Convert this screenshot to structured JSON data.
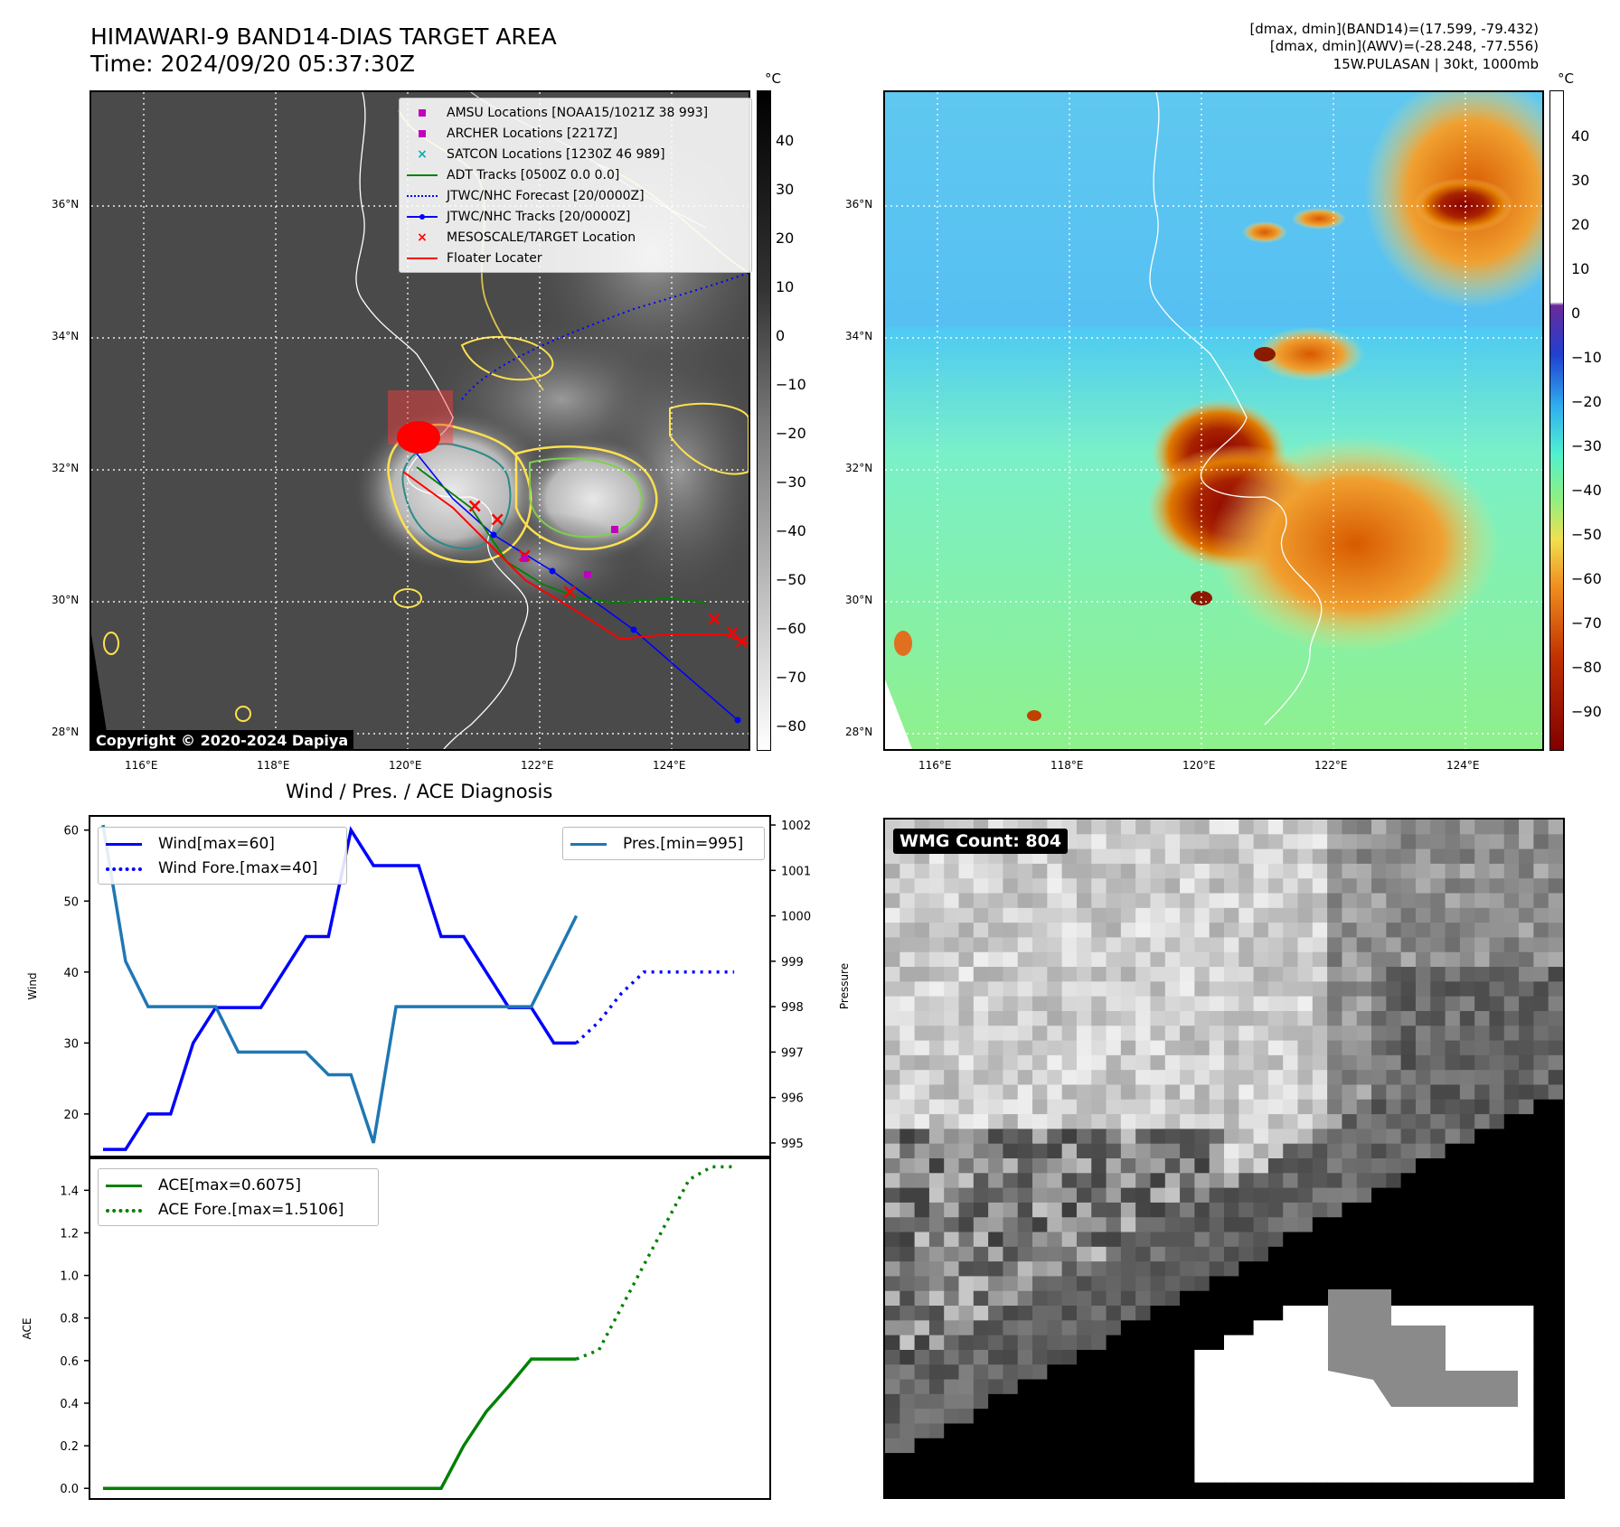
{
  "header": {
    "title_line1": "HIMAWARI-9 BAND14-DIAS TARGET AREA",
    "title_line2": "Time: 2024/09/20 05:37:30Z",
    "stats_line1": "[dmax, dmin](BAND14)=(17.599, -79.432)",
    "stats_line2": "[dmax, dmin](AWV)=(-28.248, -77.556)",
    "stats_line3": "15W.PULASAN | 30kt, 1000mb"
  },
  "map_axes": {
    "lat_ticks": [
      "36°N",
      "34°N",
      "32°N",
      "30°N",
      "28°N"
    ],
    "lon_ticks": [
      "116°E",
      "118°E",
      "120°E",
      "122°E",
      "124°E"
    ]
  },
  "ir_panel": {
    "legend": [
      {
        "label": "AMSU Locations [NOAA15/1021Z 38 993]",
        "marker": "square",
        "color": "#c000c0"
      },
      {
        "label": "ARCHER Locations [2217Z]",
        "marker": "square",
        "color": "#c000c0"
      },
      {
        "label": "SATCON Locations [1230Z 46 989]",
        "marker": "x",
        "color": "#00b0b0"
      },
      {
        "label": "ADT Tracks [0500Z 0.0 0.0]",
        "marker": "line",
        "color": "#008000"
      },
      {
        "label": "JTWC/NHC Forecast [20/0000Z]",
        "marker": "dotted",
        "color": "#0000ff"
      },
      {
        "label": "JTWC/NHC Tracks [20/0000Z]",
        "marker": "line-dot",
        "color": "#0000ff"
      },
      {
        "label": "MESOSCALE/TARGET Location",
        "marker": "x",
        "color": "#ff0000"
      },
      {
        "label": "Floater Locater",
        "marker": "line",
        "color": "#ff0000"
      }
    ],
    "copyright": "Copyright © 2020-2024 Dapiya",
    "colorbar_unit": "°C",
    "colorbar_ticks": [
      "40",
      "30",
      "20",
      "10",
      "0",
      "−10",
      "−20",
      "−30",
      "−40",
      "−50",
      "−60",
      "−70",
      "−80"
    ]
  },
  "awv_panel": {
    "colorbar_unit": "°C",
    "colorbar_ticks": [
      "40",
      "30",
      "20",
      "10",
      "0",
      "−10",
      "−20",
      "−30",
      "−40",
      "−50",
      "−60",
      "−70",
      "−80",
      "−90"
    ]
  },
  "wmg_panel": {
    "count_label": "WMG Count: 804"
  },
  "colors": {
    "wind": "#0000ff",
    "pressure": "#1f77b4",
    "ace": "#008000",
    "track": "#ff0000"
  },
  "chart_data": [
    {
      "type": "line",
      "title": "Wind / Pres. / ACE Diagnosis",
      "ylabel": "Wind",
      "y2label": "Pressure",
      "ylim": [
        14,
        62
      ],
      "y_ticks": [
        20,
        30,
        40,
        50,
        60
      ],
      "y2lim": [
        994.7,
        1002.2
      ],
      "y2_ticks": [
        995,
        996,
        997,
        998,
        999,
        1000,
        1001,
        1002
      ],
      "x": [
        0,
        1,
        2,
        3,
        4,
        5,
        6,
        7,
        8,
        9,
        10,
        11,
        12,
        13,
        14,
        15,
        16,
        17,
        18,
        19,
        20,
        21
      ],
      "series": [
        {
          "name": "Wind[max=60]",
          "style": "solid",
          "axis": "left",
          "x": [
            0,
            1,
            2,
            3,
            4,
            5,
            6,
            7,
            8,
            9,
            10,
            11,
            12,
            13,
            14,
            15,
            16,
            17,
            18,
            19,
            20,
            21
          ],
          "values": [
            15,
            15,
            20,
            20,
            30,
            35,
            35,
            35,
            40,
            45,
            45,
            60,
            55,
            55,
            55,
            45,
            45,
            40,
            35,
            35,
            30,
            30
          ]
        },
        {
          "name": "Wind Fore.[max=40]",
          "style": "dotted",
          "axis": "left",
          "x": [
            21,
            22,
            23,
            24,
            25,
            26,
            27,
            28
          ],
          "values": [
            30,
            33,
            37,
            40,
            40,
            40,
            40,
            40
          ]
        },
        {
          "name": "Pres.[min=995]",
          "style": "solid",
          "axis": "right",
          "x": [
            0,
            1,
            2,
            3,
            4,
            5,
            6,
            7,
            8,
            9,
            10,
            11,
            12,
            13,
            14,
            15,
            16,
            17,
            18,
            19,
            20,
            21
          ],
          "values": [
            1002,
            999,
            998,
            998,
            998,
            998,
            997,
            997,
            997,
            997,
            996.5,
            996.5,
            995,
            998,
            998,
            998,
            998,
            998,
            998,
            998,
            999,
            1000
          ]
        }
      ]
    },
    {
      "type": "line",
      "ylabel": "ACE",
      "ylim": [
        -0.05,
        1.55
      ],
      "y_ticks": [
        "0.0",
        "0.2",
        "0.4",
        "0.6",
        "0.8",
        "1.0",
        "1.2",
        "1.4"
      ],
      "series": [
        {
          "name": "ACE[max=0.6075]",
          "style": "solid",
          "x": [
            0,
            1,
            2,
            3,
            4,
            5,
            6,
            7,
            8,
            9,
            10,
            11,
            12,
            13,
            14,
            15,
            16,
            17,
            18,
            19,
            20,
            21
          ],
          "values": [
            0,
            0,
            0,
            0,
            0,
            0,
            0,
            0,
            0,
            0,
            0,
            0,
            0,
            0,
            0,
            0,
            0.2,
            0.36,
            0.48,
            0.6075,
            0.6075,
            0.6075
          ]
        },
        {
          "name": "ACE Fore.[max=1.5106]",
          "style": "dotted",
          "x": [
            21,
            22,
            23,
            24,
            25,
            26,
            27,
            28
          ],
          "values": [
            0.6075,
            0.65,
            0.85,
            1.05,
            1.25,
            1.45,
            1.51,
            1.5106
          ]
        }
      ]
    }
  ]
}
